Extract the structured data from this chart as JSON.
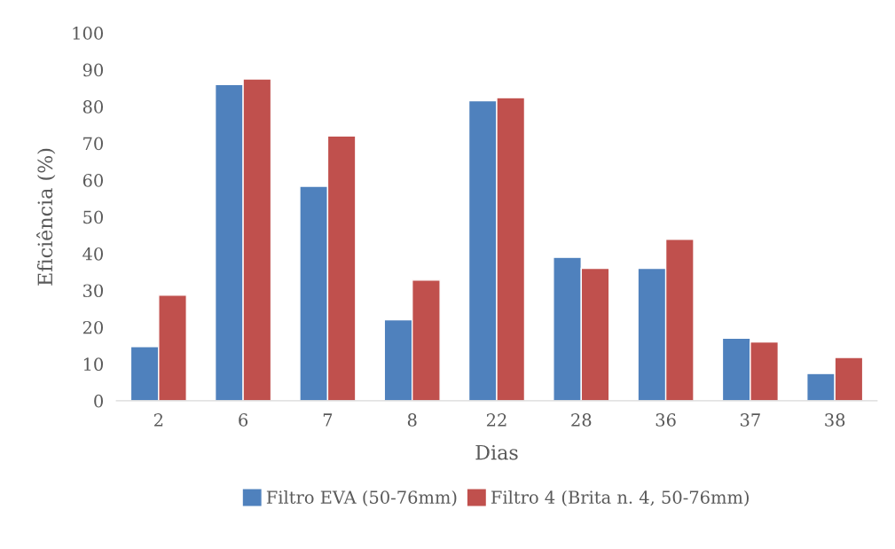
{
  "chart_data": {
    "type": "bar",
    "xlabel": "Dias",
    "ylabel": "Eficiência (%)",
    "categories": [
      "2",
      "6",
      "7",
      "8",
      "22",
      "28",
      "36",
      "37",
      "38"
    ],
    "series": [
      {
        "name": "Filtro EVA (50-76mm)",
        "color": "#4f81bd",
        "values": [
          14.7,
          86,
          58.3,
          22,
          81.6,
          39,
          36,
          17,
          7.4
        ]
      },
      {
        "name": "Filtro 4 (Brita n. 4, 50-76mm)",
        "color": "#c0504d",
        "values": [
          28.7,
          87.5,
          72,
          32.8,
          82.4,
          36,
          43.9,
          16,
          11.8
        ]
      }
    ],
    "ylim": [
      0,
      100
    ],
    "yticks": [
      0,
      10,
      20,
      30,
      40,
      50,
      60,
      70,
      80,
      90,
      100
    ],
    "grid": false,
    "legend": "bottom"
  }
}
